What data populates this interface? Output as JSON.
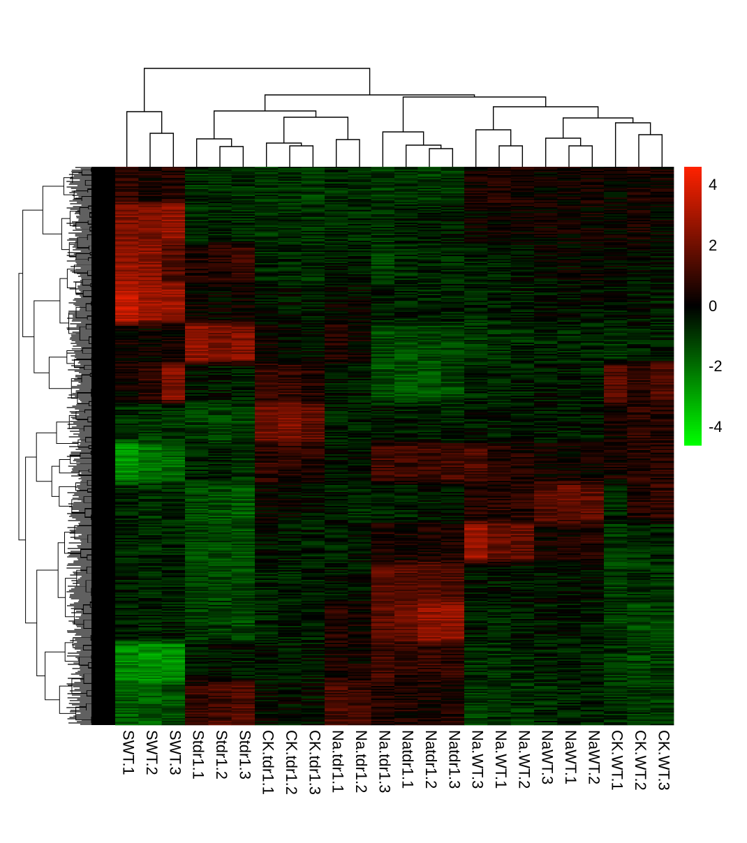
{
  "chart_data": {
    "type": "heatmap",
    "title": "",
    "xlabel": "",
    "ylabel": "",
    "columns": [
      "SWT.1",
      "SWT.2",
      "SWT.3",
      "Stdr1.1",
      "Stdr1.2",
      "Stdr1.3",
      "CK.tdr1.1",
      "CK.tdr1.2",
      "CK.tdr1.3",
      "Na.tdr1.1",
      "Na.tdr1.2",
      "Na.tdr1.3",
      "Natdr1.1",
      "Natdr1.2",
      "Natdr1.3",
      "Na.WT.3",
      "Na.WT.1",
      "Na.WT.2",
      "NaWT.3",
      "NaWT.1",
      "NaWT.2",
      "CK.WT.1",
      "CK.WT.2",
      "CK.WT.3"
    ],
    "color_scale": {
      "min": -4.6,
      "max": 4.6,
      "low_color": "#00ff00",
      "mid_color": "#000000",
      "high_color": "#ff2200",
      "ticks": [
        4,
        2,
        0,
        -2,
        -4
      ],
      "tick_labels": [
        "4",
        "2",
        "0",
        "-2",
        "-4"
      ]
    },
    "row_blocks": [
      [
        0.8,
        0.5,
        0.6,
        -0.8,
        -0.7,
        -0.8,
        -0.9,
        -0.9,
        -1.0,
        -0.8,
        -0.8,
        -1.0,
        -1.0,
        -1.0,
        -0.9,
        0.4,
        0.6,
        0.5,
        0.2,
        0.3,
        0.3,
        0.1,
        0.4,
        0.3
      ],
      [
        2.3,
        2.2,
        2.6,
        -0.7,
        -0.6,
        -0.7,
        -0.8,
        -0.8,
        -0.9,
        -0.6,
        -0.7,
        -0.7,
        -0.5,
        -0.5,
        -0.4,
        0.1,
        0.2,
        0.2,
        0.2,
        0.3,
        0.2,
        0.1,
        0.4,
        0.0
      ],
      [
        2.6,
        2.5,
        1.5,
        0.6,
        0.7,
        1.0,
        -0.6,
        -0.6,
        -0.8,
        -0.4,
        -0.5,
        -1.0,
        -0.8,
        -0.7,
        -0.7,
        -0.6,
        -0.5,
        -0.4,
        -0.1,
        0.0,
        0.1,
        0.0,
        -0.2,
        -0.3
      ],
      [
        3.4,
        2.8,
        2.7,
        0.2,
        0.0,
        0.2,
        -0.3,
        -0.3,
        -0.4,
        0.0,
        -0.1,
        -0.5,
        -0.5,
        -0.6,
        -0.6,
        -0.7,
        -0.6,
        -0.5,
        -0.3,
        -0.3,
        -0.2,
        -0.4,
        -0.3,
        -0.4
      ],
      [
        0.3,
        0.1,
        0.2,
        2.5,
        2.1,
        2.3,
        0.2,
        -0.1,
        -0.2,
        0.6,
        0.2,
        -1.2,
        -1.3,
        -1.3,
        -1.2,
        -1.0,
        -0.8,
        -0.7,
        -0.6,
        -0.6,
        -0.6,
        -0.8,
        -0.6,
        -0.5
      ],
      [
        0.2,
        0.8,
        2.3,
        -0.3,
        -0.4,
        -0.5,
        1.0,
        0.9,
        0.6,
        -0.4,
        -0.4,
        -1.4,
        -1.4,
        -1.4,
        -1.3,
        -0.7,
        -0.6,
        -0.5,
        -0.4,
        -0.4,
        -0.5,
        1.6,
        0.9,
        1.5
      ],
      [
        -0.8,
        -0.9,
        -0.9,
        -1.0,
        -1.2,
        -1.1,
        2.0,
        2.2,
        1.7,
        -0.5,
        -0.5,
        -0.3,
        -0.5,
        -0.5,
        -0.6,
        -0.4,
        -0.4,
        -0.3,
        -0.4,
        -0.4,
        -0.4,
        0.3,
        0.8,
        0.7
      ],
      [
        -2.6,
        -2.0,
        -1.9,
        -0.6,
        -0.5,
        -0.9,
        0.8,
        0.7,
        0.6,
        -0.2,
        -0.2,
        1.2,
        1.1,
        1.1,
        1.3,
        1.3,
        0.6,
        0.5,
        0.2,
        0.2,
        0.3,
        0.4,
        0.6,
        0.6
      ],
      [
        -0.6,
        -0.8,
        -0.7,
        -1.3,
        -1.4,
        -1.6,
        0.1,
        0.0,
        -0.3,
        -0.5,
        -0.6,
        -0.6,
        -0.5,
        -0.4,
        -0.3,
        0.5,
        0.6,
        0.7,
        1.6,
        1.8,
        1.7,
        -0.6,
        0.5,
        0.9
      ],
      [
        -0.6,
        -0.7,
        -0.6,
        -1.2,
        -1.3,
        -1.4,
        -0.3,
        -0.4,
        -0.5,
        -0.5,
        -0.2,
        0.5,
        0.4,
        0.4,
        0.5,
        2.9,
        1.9,
        1.7,
        0.3,
        0.4,
        0.6,
        -1.0,
        -0.8,
        -0.6
      ],
      [
        -0.5,
        -0.6,
        -0.6,
        -1.1,
        -1.2,
        -1.3,
        -0.5,
        -0.6,
        -0.5,
        -0.3,
        -0.4,
        1.6,
        1.5,
        1.6,
        1.4,
        -0.3,
        -0.4,
        -0.3,
        -0.2,
        -0.3,
        -0.3,
        -1.0,
        -0.9,
        -0.8
      ],
      [
        -0.6,
        -0.6,
        -0.5,
        -1.1,
        -1.0,
        -1.2,
        -0.6,
        -0.5,
        -0.6,
        0.6,
        0.3,
        1.6,
        2.0,
        2.6,
        2.6,
        -0.5,
        -0.6,
        -0.5,
        -0.4,
        -0.4,
        -0.5,
        -1.0,
        -1.2,
        -1.1
      ],
      [
        -2.4,
        -2.7,
        -2.5,
        -0.3,
        -0.3,
        -0.4,
        -0.3,
        -0.4,
        -0.3,
        0.4,
        0.3,
        1.1,
        0.8,
        0.9,
        0.8,
        -0.8,
        -0.8,
        -0.7,
        -0.5,
        -0.5,
        -0.4,
        -0.8,
        -1.2,
        -1.1
      ],
      [
        -1.6,
        -1.6,
        -1.4,
        1.0,
        1.2,
        1.4,
        -0.1,
        -0.2,
        -0.2,
        1.3,
        1.1,
        0.6,
        0.5,
        0.4,
        0.5,
        -1.0,
        -0.9,
        -0.9,
        -0.7,
        -0.6,
        -0.6,
        -0.8,
        -0.9,
        -1.0
      ]
    ]
  }
}
